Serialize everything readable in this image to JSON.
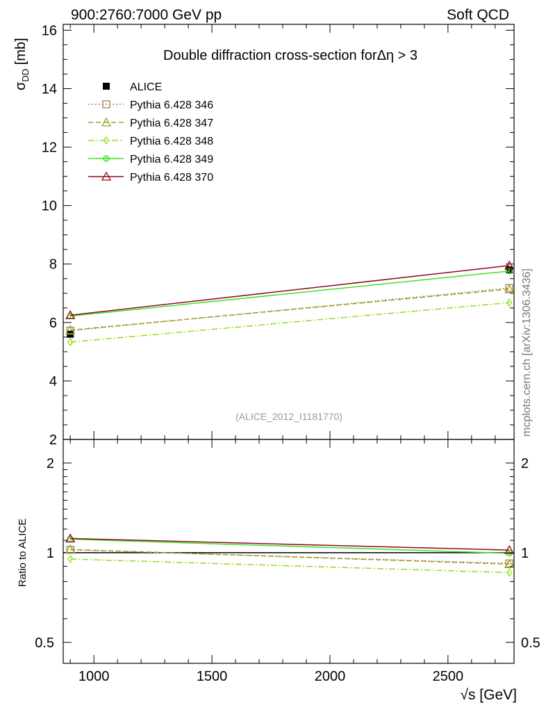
{
  "header": {
    "left": "900:2760:7000 GeV pp",
    "right": "Soft QCD"
  },
  "side_label": "mcplots.cern.ch [arXiv:1306.3436]",
  "chart_data": [
    {
      "type": "line",
      "title": "Double diffraction cross-section forΔη > 3",
      "watermark": "(ALICE_2012_I1181770)",
      "ylabel_main": "σ",
      "ylabel_sub": "DD",
      "ylabel_unit": " [mb]",
      "xlabel_root": "√s",
      "xlabel_unit": " [GeV]",
      "xlim": [
        870,
        2780
      ],
      "ylim": [
        2,
        16.2
      ],
      "yticks": [
        "2",
        "4",
        "6",
        "8",
        "10",
        "12",
        "14",
        "16"
      ],
      "x": [
        900,
        2760
      ],
      "series": [
        {
          "name": "ALICE",
          "values": [
            5.6,
            7.8
          ],
          "color": "#000000",
          "marker": "square-filled"
        },
        {
          "name": "Pythia 6.428 346",
          "values": [
            5.72,
            7.18
          ],
          "color": "#a08050",
          "marker": "square-open",
          "dash": "2,3"
        },
        {
          "name": "Pythia 6.428 347",
          "values": [
            5.74,
            7.14
          ],
          "color": "#9aa020",
          "marker": "triangle-open",
          "dash": "7,4"
        },
        {
          "name": "Pythia 6.428 348",
          "values": [
            5.33,
            6.68
          ],
          "color": "#90e020",
          "marker": "diamond-open",
          "dash": "9,3,2,3"
        },
        {
          "name": "Pythia 6.428 349",
          "values": [
            6.22,
            7.76
          ],
          "color": "#40e020",
          "marker": "circle-open",
          "dash": ""
        },
        {
          "name": "Pythia 6.428 370",
          "values": [
            6.25,
            7.95
          ],
          "color": "#8b0a1e",
          "marker": "triangle-open",
          "dash": ""
        }
      ]
    },
    {
      "type": "line",
      "ylabel": "Ratio to ALICE",
      "scale": "log",
      "ylim": [
        0.425,
        2.4
      ],
      "yticks": [
        "0.5",
        "1",
        "2"
      ],
      "xticks": [
        "1000",
        "1500",
        "2000",
        "2500"
      ],
      "x": [
        900,
        2760
      ],
      "series": [
        {
          "name": "ALICE",
          "values": [
            1.0,
            1.0
          ]
        },
        {
          "name": "Pythia 6.428 346",
          "values": [
            1.022,
            0.92
          ]
        },
        {
          "name": "Pythia 6.428 347",
          "values": [
            1.025,
            0.915
          ]
        },
        {
          "name": "Pythia 6.428 348",
          "values": [
            0.952,
            0.857
          ]
        },
        {
          "name": "Pythia 6.428 349",
          "values": [
            1.11,
            0.995
          ]
        },
        {
          "name": "Pythia 6.428 370",
          "values": [
            1.116,
            1.02
          ]
        }
      ]
    }
  ]
}
